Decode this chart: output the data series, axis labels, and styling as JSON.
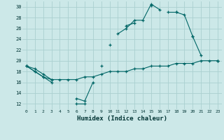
{
  "xlabel": "Humidex (Indice chaleur)",
  "x": [
    0,
    1,
    2,
    3,
    4,
    5,
    6,
    7,
    8,
    9,
    10,
    11,
    12,
    13,
    14,
    15,
    16,
    17,
    18,
    19,
    20,
    21,
    22,
    23
  ],
  "line1": [
    19,
    18,
    17,
    16,
    null,
    null,
    12,
    12,
    null,
    19,
    null,
    25,
    26,
    27.5,
    27.5,
    30.5,
    29.5,
    null,
    29,
    28.5,
    24.5,
    21,
    null,
    20
  ],
  "line2": [
    19,
    18,
    17,
    16.5,
    null,
    null,
    13,
    12.5,
    16,
    null,
    23,
    null,
    26.5,
    27,
    null,
    30.2,
    null,
    29,
    29,
    null,
    24.5,
    null,
    null,
    20
  ],
  "line3": [
    19,
    18.5,
    17.5,
    16.5,
    16.5,
    16.5,
    16.5,
    17,
    17,
    17.5,
    18,
    18,
    18,
    18.5,
    18.5,
    19,
    19,
    19,
    19.5,
    19.5,
    19.5,
    20,
    20,
    20
  ],
  "bg_color": "#cce8e8",
  "grid_color": "#aad0d0",
  "line_color": "#006666",
  "yticks": [
    12,
    14,
    16,
    18,
    20,
    22,
    24,
    26,
    28,
    30
  ],
  "xticks": [
    0,
    1,
    2,
    3,
    4,
    5,
    6,
    7,
    8,
    9,
    10,
    11,
    12,
    13,
    14,
    15,
    16,
    17,
    18,
    19,
    20,
    21,
    22,
    23
  ],
  "ylim": [
    11,
    31
  ],
  "xlim": [
    -0.5,
    23.5
  ]
}
